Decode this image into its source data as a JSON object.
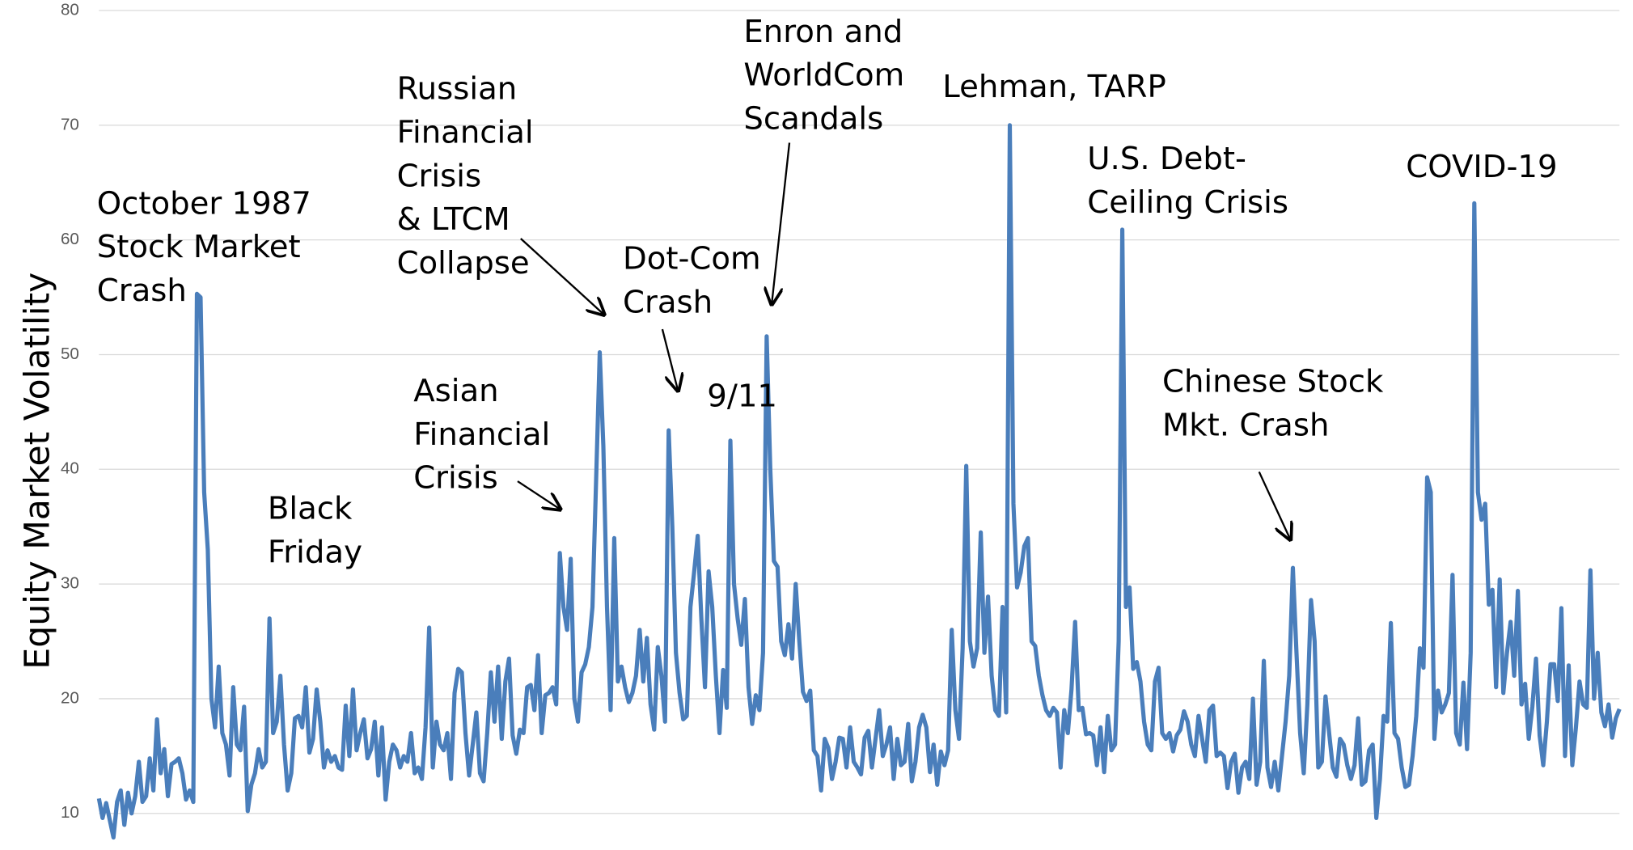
{
  "chart_data": {
    "type": "line",
    "y_label": "Equity Market Volatility",
    "color": "#4a7ebb",
    "ylim": [
      7.5,
      80
    ],
    "yticks": [
      10,
      20,
      30,
      40,
      50,
      60,
      70,
      80
    ],
    "grid": true,
    "annotations": [
      [
        "October 1987",
        "Stock Market",
        "Crash"
      ],
      [
        "Black",
        "Friday"
      ],
      [
        "Russian",
        "Financial",
        "Crisis",
        "& LTCM",
        "Collapse"
      ],
      [
        "Asian",
        "Financial",
        "Crisis"
      ],
      [
        "Dot-Com",
        "Crash"
      ],
      [
        "9/11"
      ],
      [
        "Enron and",
        "WorldCom",
        "Scandals"
      ],
      [
        "Lehman, TARP"
      ],
      [
        "U.S. Debt-",
        "Ceiling Crisis"
      ],
      [
        "Chinese Stock",
        "Mkt. Crash"
      ],
      [
        "COVID-19"
      ]
    ],
    "values": [
      11.3,
      9.6,
      10.9,
      9.4,
      7.9,
      11,
      12,
      9,
      11.8,
      10,
      11.5,
      14.5,
      11,
      11.5,
      14.8,
      12,
      18.2,
      13.5,
      15.6,
      11.5,
      14.3,
      14.5,
      14.8,
      13.5,
      11.2,
      12,
      11,
      55.3,
      55,
      38,
      33,
      20,
      17.5,
      22.8,
      17,
      16,
      13.3,
      21,
      16,
      15.5,
      19.3,
      10.2,
      12.5,
      13.5,
      15.6,
      14,
      14.5,
      27,
      17,
      18,
      22,
      16,
      12,
      13.5,
      18.3,
      18.5,
      17.5,
      21,
      15.3,
      16.5,
      20.8,
      18,
      14,
      15.5,
      14.5,
      15,
      14,
      13.8,
      19.4,
      15,
      20.8,
      15.5,
      17,
      18.2,
      14.8,
      15.6,
      18,
      13.3,
      17.5,
      11.2,
      14.5,
      16,
      15.5,
      14,
      15,
      14.5,
      17,
      13.5,
      14,
      13,
      17.5,
      26.2,
      14,
      18,
      16,
      15.5,
      17,
      13,
      20.5,
      22.6,
      22.3,
      17,
      13.3,
      16,
      18.8,
      13.5,
      12.8,
      17,
      22.3,
      18,
      22.8,
      16.5,
      21.5,
      23.5,
      16.8,
      15.2,
      17.3,
      17,
      21,
      21.2,
      19,
      23.8,
      17,
      20.3,
      20.5,
      21,
      19.5,
      32.7,
      28,
      26,
      32.2,
      20,
      18,
      22.3,
      23,
      24.5,
      28,
      39,
      50.2,
      42,
      28,
      19,
      34,
      21.5,
      22.8,
      21,
      19.7,
      20.5,
      22,
      26,
      21.5,
      25.3,
      19.5,
      17.3,
      24.5,
      22,
      18,
      43.4,
      35,
      24,
      20.5,
      18.2,
      18.5,
      28,
      31,
      34.2,
      27,
      21,
      31.1,
      28,
      22,
      17,
      22.5,
      19.2,
      42.5,
      30,
      27,
      24.7,
      28.7,
      21,
      17.8,
      20.3,
      19,
      24,
      51.6,
      40,
      32,
      31.5,
      25,
      23.8,
      26.5,
      23.5,
      30,
      25,
      20.6,
      19.8,
      20.7,
      15.5,
      15,
      12,
      16.5,
      15.7,
      13,
      14.5,
      16.6,
      16.5,
      14,
      17.5,
      14.5,
      14,
      13.4,
      16.6,
      17.2,
      14,
      16.5,
      19,
      15,
      16,
      17.5,
      13,
      16.5,
      14.2,
      14.5,
      17.8,
      12.8,
      14.5,
      17.5,
      18.6,
      17.5,
      13.6,
      16,
      12.5,
      15.4,
      14.2,
      15.5,
      26,
      19,
      16.5,
      24.4,
      40.3,
      25,
      22.8,
      24.4,
      34.5,
      24,
      28.9,
      22,
      19,
      18.5,
      28,
      18.8,
      70,
      37,
      29.7,
      31,
      33.3,
      34,
      25,
      24.6,
      22,
      20.3,
      19,
      18.5,
      19.2,
      18.8,
      14,
      19,
      17,
      20.8,
      26.7,
      19,
      19.2,
      16.9,
      17,
      16.8,
      14.2,
      17.5,
      13.6,
      18.5,
      15.5,
      16,
      25,
      60.9,
      28,
      29.7,
      22.6,
      23.2,
      21.5,
      18,
      16,
      15.5,
      21.5,
      22.7,
      17,
      16.5,
      17,
      15.4,
      16.8,
      17.3,
      18.9,
      18,
      16,
      15,
      18.5,
      16.5,
      14.5,
      19,
      19.4,
      15,
      15.3,
      15,
      12.2,
      14.5,
      15.2,
      11.8,
      14,
      14.5,
      13,
      20,
      12.5,
      14.5,
      23.3,
      14,
      12.3,
      14.5,
      12,
      15,
      18,
      22,
      31.4,
      24,
      17,
      13.5,
      19.5,
      28.6,
      25,
      14,
      14.5,
      20.2,
      17,
      14,
      13.2,
      16.5,
      16,
      14.2,
      13,
      14.2,
      18.3,
      12.5,
      12.8,
      15.5,
      16,
      9.6,
      13,
      18.5,
      18,
      26.6,
      17,
      16.5,
      14,
      12.3,
      12.5,
      15,
      18.5,
      24.4,
      22.7,
      39.3,
      38,
      16.5,
      20.7,
      18.8,
      19.5,
      20.5,
      30.8,
      17,
      16,
      21.4,
      15.6,
      24,
      63.2,
      38,
      35.6,
      37,
      28.2,
      29.5,
      21,
      30.4,
      20.5,
      24,
      26.7,
      22,
      29.4,
      19.5,
      21.3,
      16.5,
      19.3,
      23.5,
      16.8,
      14.2,
      18,
      23,
      23,
      19.8,
      27.9,
      15,
      22.9,
      14.2,
      17.5,
      21.5,
      19.5,
      19.2,
      31.2,
      20,
      24,
      18.8,
      17.6,
      19.5,
      16.6,
      18.3,
      19.1
    ]
  }
}
